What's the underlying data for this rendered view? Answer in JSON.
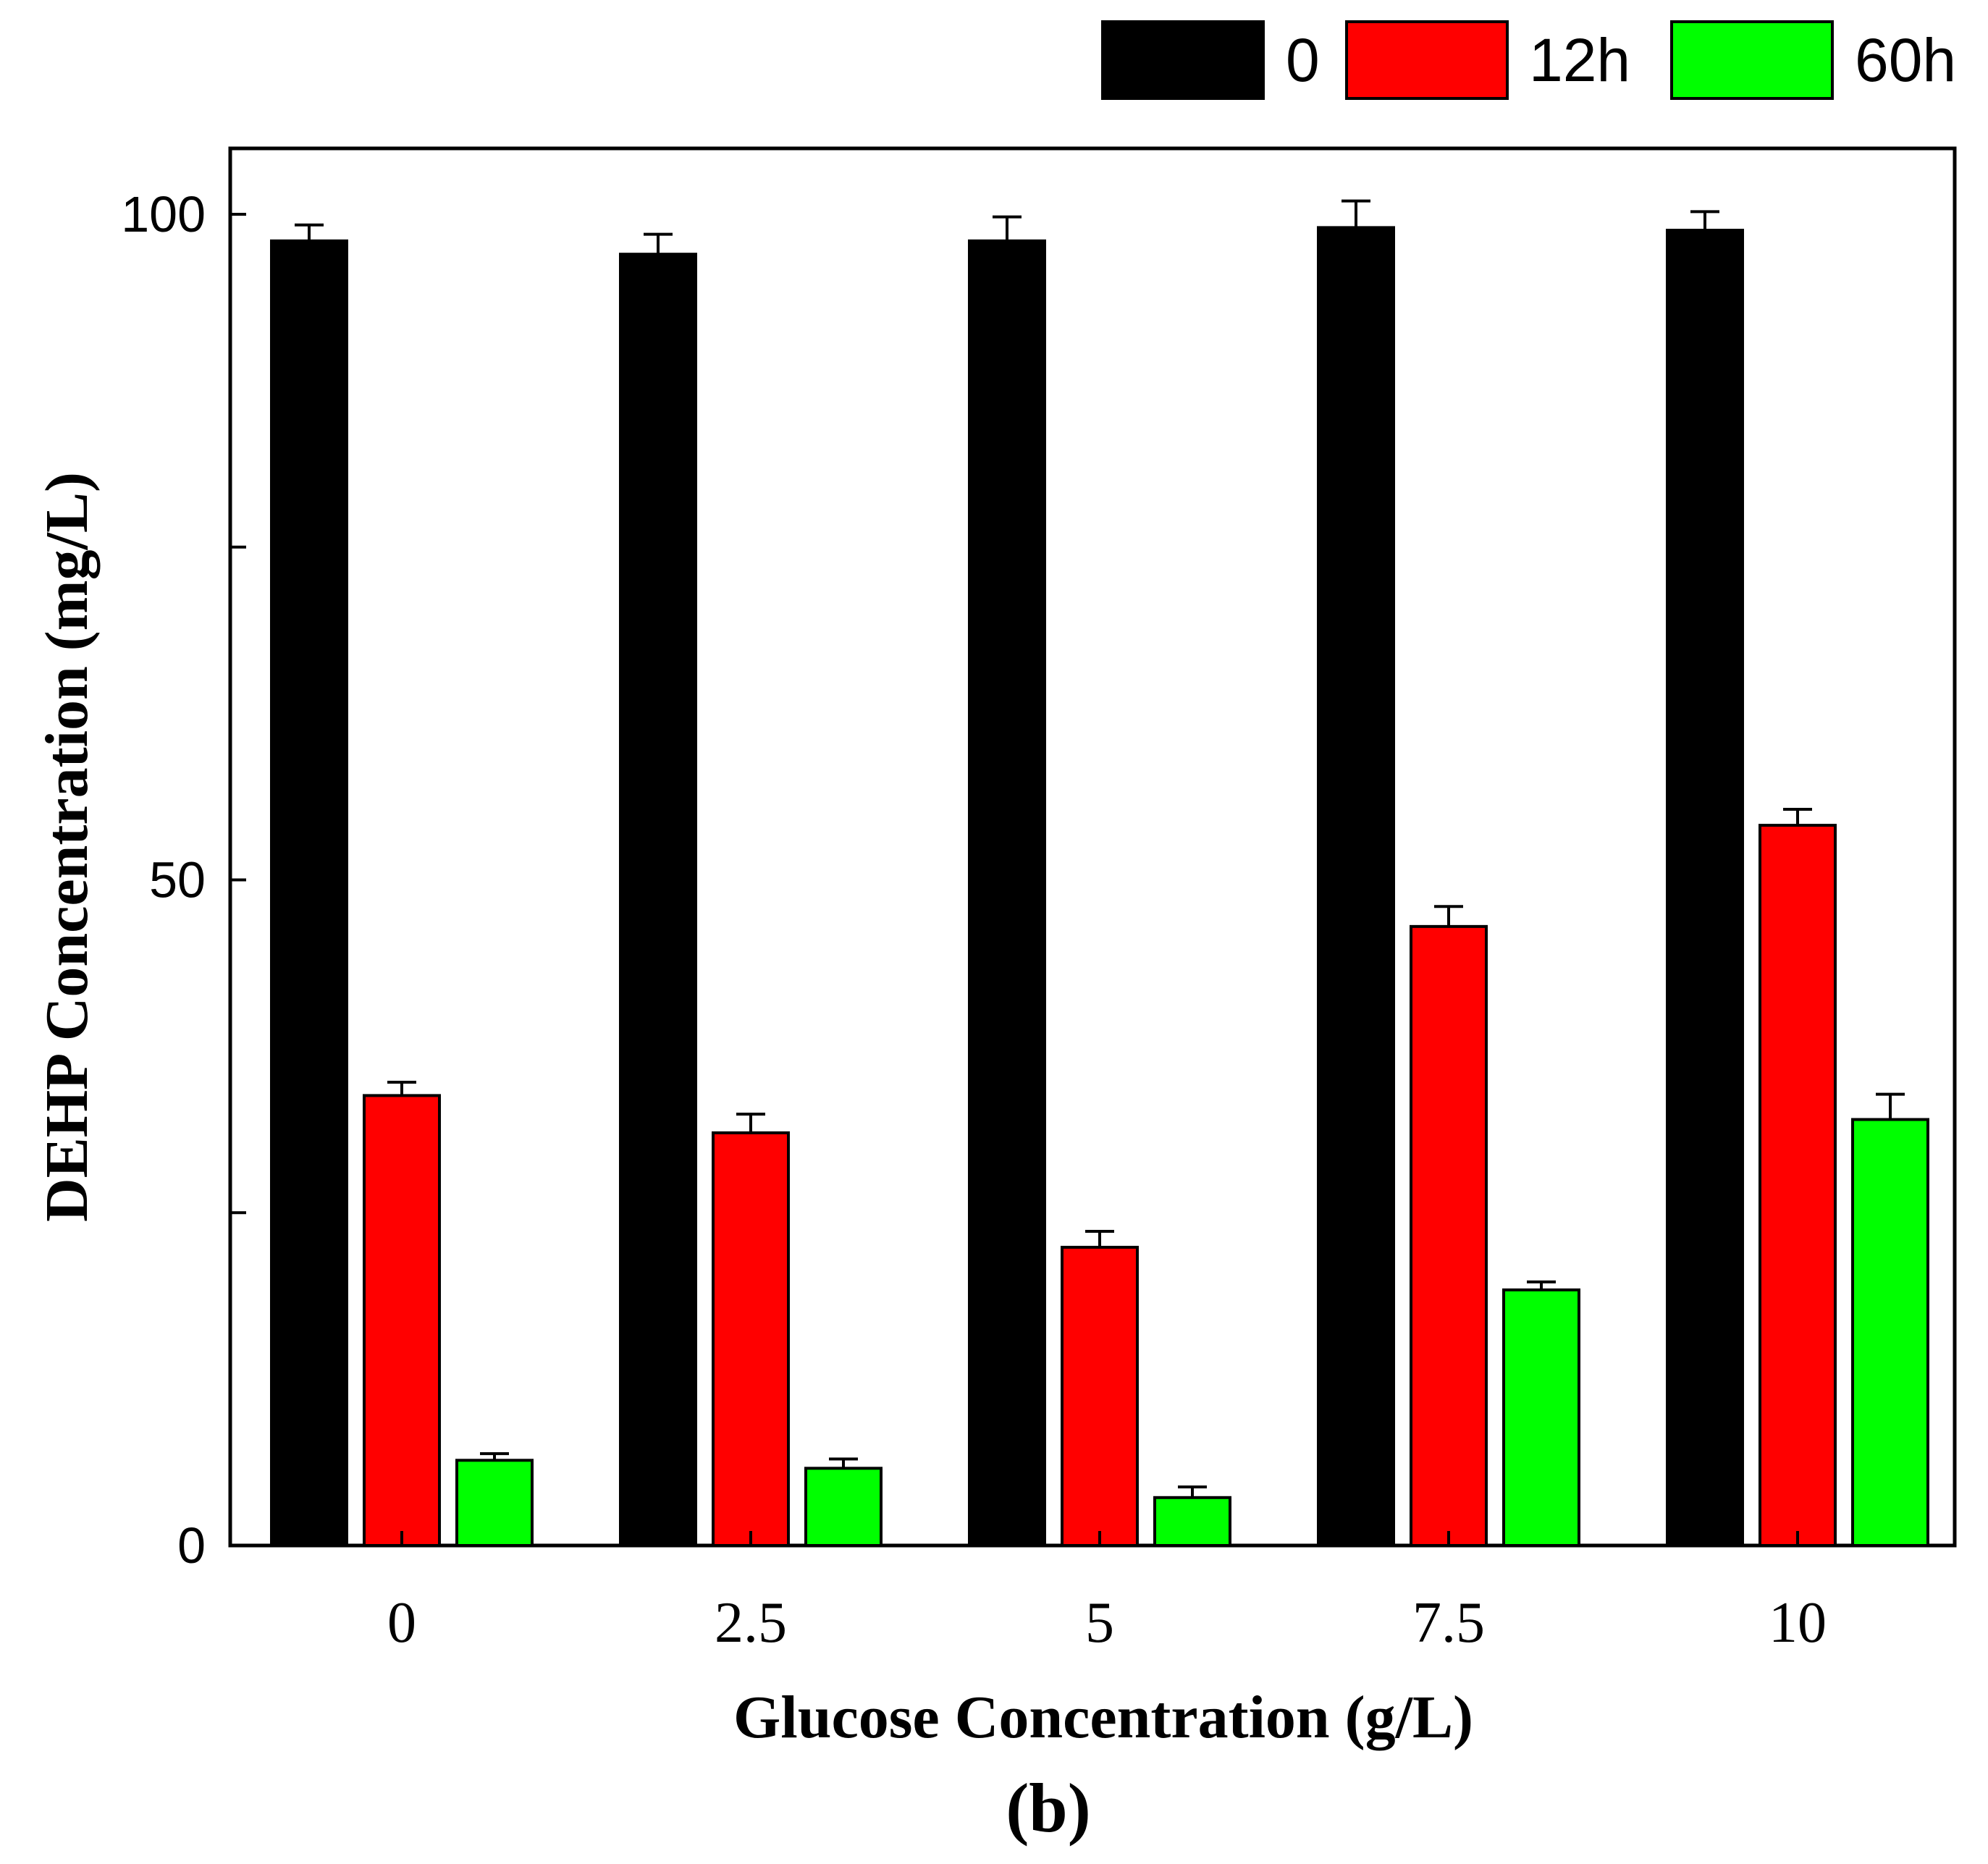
{
  "chart_data": {
    "type": "bar",
    "title": "",
    "panel_label": "(b)",
    "xlabel": "Glucose Concentration (g/L)",
    "ylabel": "DEHP Concentration (mg/L)",
    "categories": [
      "0",
      "2.5",
      "5",
      "7.5",
      "10"
    ],
    "ylim": [
      0,
      100
    ],
    "yticks": [
      0,
      25,
      50,
      75,
      100
    ],
    "ytick_labels": [
      "0",
      "",
      "50",
      "",
      "100"
    ],
    "grid": false,
    "legend_position": "top-right",
    "series": [
      {
        "name": "0",
        "color": "#000000",
        "values": [
          98.0,
          97.0,
          98.0,
          99.0,
          98.8
        ],
        "errors": [
          1.2,
          1.5,
          1.8,
          2.0,
          1.4
        ]
      },
      {
        "name": "12h",
        "color": "#ff0000",
        "values": [
          33.8,
          31.0,
          22.4,
          46.5,
          54.1
        ],
        "errors": [
          1.0,
          1.4,
          1.2,
          1.5,
          1.2
        ]
      },
      {
        "name": "60h",
        "color": "#00ff00",
        "values": [
          6.4,
          5.8,
          3.6,
          19.2,
          32.0
        ],
        "errors": [
          0.5,
          0.7,
          0.8,
          0.6,
          1.9
        ]
      }
    ]
  }
}
